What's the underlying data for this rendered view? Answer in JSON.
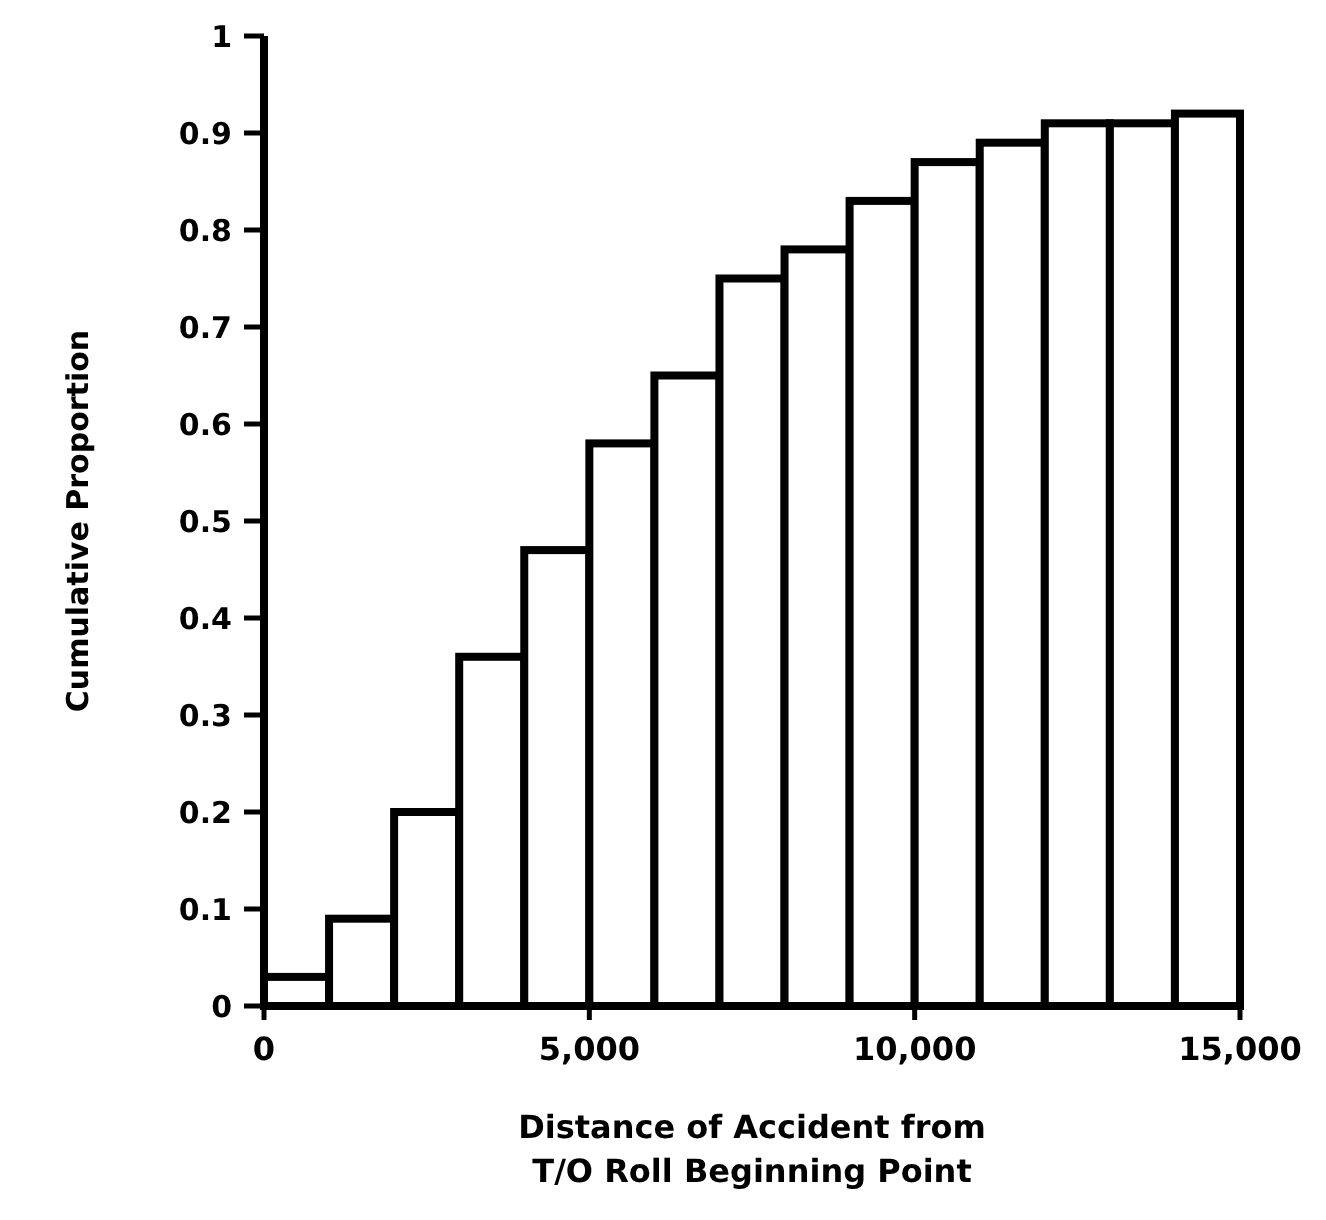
{
  "chart_data": {
    "type": "histogram",
    "xlabel": "Distance of Accident from\nT/O Roll Beginning Point",
    "ylabel": "Cumulative Proportion",
    "bins": [
      0,
      1000,
      2000,
      3000,
      4000,
      5000,
      6000,
      7000,
      8000,
      9000,
      10000,
      11000,
      12000,
      13000,
      14000,
      15000
    ],
    "values": [
      0.03,
      0.09,
      0.2,
      0.36,
      0.47,
      0.58,
      0.65,
      0.75,
      0.78,
      0.83,
      0.87,
      0.89,
      0.91,
      0.91,
      0.92
    ],
    "color": "#ffffff",
    "xlim": [
      0,
      15000
    ],
    "xticks": [
      0,
      {
        "value": 5000,
        "label": "5,000"
      },
      {
        "value": 10000,
        "label": "10,000"
      },
      {
        "value": 15000,
        "label": "15,000"
      }
    ],
    "ylim": [
      0,
      1
    ],
    "yticks": [
      0,
      0.1,
      0.2,
      0.3,
      0.4,
      0.5,
      0.6,
      0.7,
      0.8,
      0.9,
      1
    ],
    "grid": false
  }
}
